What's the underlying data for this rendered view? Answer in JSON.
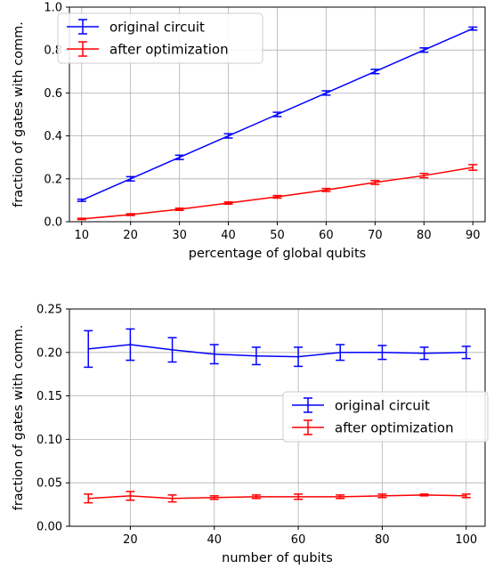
{
  "chart_data": [
    {
      "type": "line",
      "title": "",
      "xlabel": "percentage of global qubits",
      "ylabel": "fraction of gates with comm.",
      "xlim": [
        7.5,
        92.5
      ],
      "ylim": [
        0.0,
        1.0
      ],
      "xticks": [
        10,
        20,
        30,
        40,
        50,
        60,
        70,
        80,
        90
      ],
      "xtick_labels": [
        "10",
        "20",
        "30",
        "40",
        "50",
        "60",
        "70",
        "80",
        "90"
      ],
      "yticks": [
        0.0,
        0.2,
        0.4,
        0.6,
        0.8,
        1.0
      ],
      "ytick_labels": [
        "0.0",
        "0.2",
        "0.4",
        "0.6",
        "0.8",
        "1.0"
      ],
      "grid": true,
      "legend_position": "top-left",
      "x": [
        10,
        20,
        30,
        40,
        50,
        60,
        70,
        80,
        90
      ],
      "series": [
        {
          "name": "original circuit",
          "color": "#0000ff",
          "values": [
            0.1,
            0.2,
            0.3,
            0.4,
            0.5,
            0.6,
            0.7,
            0.8,
            0.9
          ],
          "err": [
            0.005,
            0.01,
            0.01,
            0.01,
            0.01,
            0.01,
            0.01,
            0.01,
            0.007
          ]
        },
        {
          "name": "after optimization",
          "color": "#ff0000",
          "values": [
            0.013,
            0.033,
            0.058,
            0.087,
            0.116,
            0.148,
            0.183,
            0.215,
            0.253
          ],
          "err": [
            0.003,
            0.004,
            0.005,
            0.005,
            0.006,
            0.007,
            0.009,
            0.01,
            0.013
          ]
        }
      ]
    },
    {
      "type": "line",
      "title": "",
      "xlabel": "number of qubits",
      "ylabel": "fraction of gates with comm.",
      "xlim": [
        5.5,
        104.5
      ],
      "ylim": [
        0.0,
        0.25
      ],
      "xticks": [
        20,
        40,
        60,
        80,
        100
      ],
      "xtick_labels": [
        "20",
        "40",
        "60",
        "80",
        "100"
      ],
      "yticks": [
        0.0,
        0.05,
        0.1,
        0.15,
        0.2,
        0.25
      ],
      "ytick_labels": [
        "0.00",
        "0.05",
        "0.10",
        "0.15",
        "0.20",
        "0.25"
      ],
      "grid": true,
      "legend_position": "center-right",
      "x": [
        10,
        20,
        30,
        40,
        50,
        60,
        70,
        80,
        90,
        100
      ],
      "series": [
        {
          "name": "original circuit",
          "color": "#0000ff",
          "values": [
            0.204,
            0.209,
            0.203,
            0.198,
            0.196,
            0.195,
            0.2,
            0.2,
            0.199,
            0.2
          ],
          "err": [
            0.021,
            0.018,
            0.014,
            0.011,
            0.01,
            0.011,
            0.009,
            0.008,
            0.007,
            0.007
          ]
        },
        {
          "name": "after optimization",
          "color": "#ff0000",
          "values": [
            0.032,
            0.035,
            0.032,
            0.033,
            0.034,
            0.034,
            0.034,
            0.035,
            0.036,
            0.035
          ],
          "err": [
            0.005,
            0.005,
            0.004,
            0.002,
            0.002,
            0.003,
            0.002,
            0.002,
            0.001,
            0.002
          ]
        }
      ]
    }
  ]
}
